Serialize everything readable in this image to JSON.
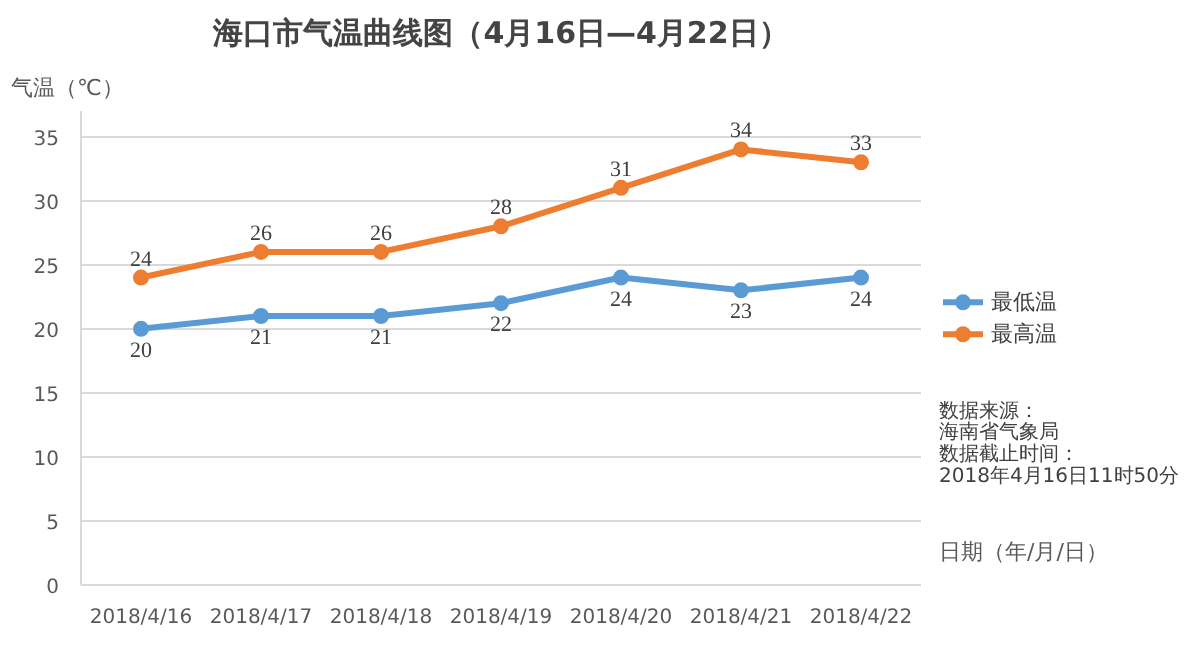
{
  "chart_data": {
    "type": "line",
    "title": "海口市气温曲线图（4月16日—4月22日）",
    "ylabel": "气温（℃）",
    "xlabel": "日期（年/月/日）",
    "categories": [
      "2018/4/16",
      "2018/4/17",
      "2018/4/18",
      "2018/4/19",
      "2018/4/20",
      "2018/4/21",
      "2018/4/22"
    ],
    "series": [
      {
        "name": "最低温",
        "color": "#5b9bd5",
        "values": [
          20,
          21,
          21,
          22,
          24,
          23,
          24
        ]
      },
      {
        "name": "最高温",
        "color": "#ed7d31",
        "values": [
          24,
          26,
          26,
          28,
          31,
          34,
          33
        ]
      }
    ],
    "ylim": [
      0,
      37
    ],
    "yticks": [
      0,
      5,
      10,
      15,
      20,
      25,
      30,
      35
    ],
    "grid": "y",
    "legend": "right",
    "marker": "circle",
    "line_style": "solid",
    "data_labels": true,
    "annotations": [
      "数据来源：",
      "海南省气象局",
      "数据截止时间：",
      "2018年4月16日11时50分"
    ]
  }
}
